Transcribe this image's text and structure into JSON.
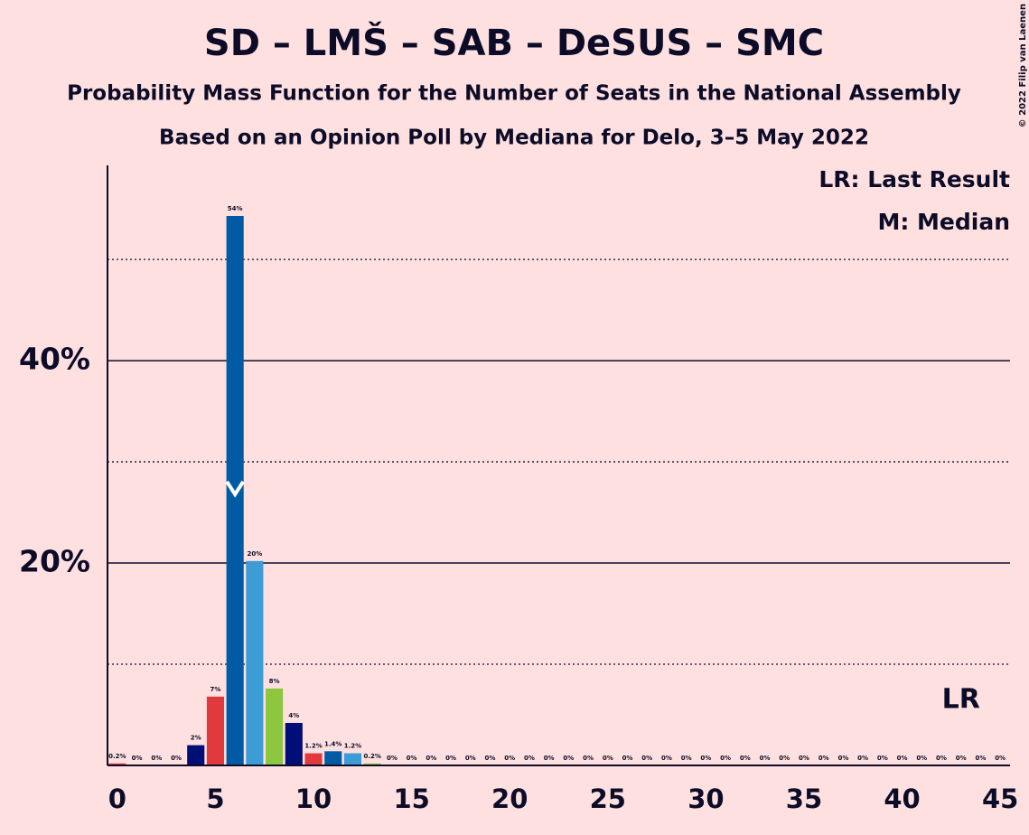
{
  "chart_data": {
    "type": "bar",
    "title": "SD – LMŠ – SAB – DeSUS – SMC",
    "subtitle": "Probability Mass Function for the Number of Seats in the National Assembly",
    "subtitle2": "Based on an Opinion Poll by Mediana for Delo, 3–5 May 2022",
    "legend_lr": "LR: Last Result",
    "legend_m": "M: Median",
    "lr_label": "LR",
    "copyright": "© 2022 Filip van Laenen",
    "categories": [
      0,
      1,
      2,
      3,
      4,
      5,
      6,
      7,
      8,
      9,
      10,
      11,
      12,
      13,
      14,
      15,
      16,
      17,
      18,
      19,
      20,
      21,
      22,
      23,
      24,
      25,
      26,
      27,
      28,
      29,
      30,
      31,
      32,
      33,
      34,
      35,
      36,
      37,
      38,
      39,
      40,
      41,
      42,
      43,
      44,
      45
    ],
    "values": [
      0.2,
      0,
      0,
      0,
      2,
      6.8,
      54.3,
      20.2,
      7.6,
      4.2,
      1.2,
      1.4,
      1.2,
      0.2,
      0,
      0,
      0,
      0,
      0,
      0,
      0,
      0,
      0,
      0,
      0,
      0,
      0,
      0,
      0,
      0,
      0,
      0,
      0,
      0,
      0,
      0,
      0,
      0,
      0,
      0,
      0,
      0,
      0,
      0,
      0,
      0
    ],
    "value_labels": [
      "0.2%",
      "0%",
      "0%",
      "0%",
      "2%",
      "7%",
      "54%",
      "20%",
      "8%",
      "4%",
      "1.2%",
      "1.4%",
      "1.2%",
      "0.2%",
      "0%",
      "0%",
      "0%",
      "0%",
      "0%",
      "0%",
      "0%",
      "0%",
      "0%",
      "0%",
      "0%",
      "0%",
      "0%",
      "0%",
      "0%",
      "0%",
      "0%",
      "0%",
      "0%",
      "0%",
      "0%",
      "0%",
      "0%",
      "0%",
      "0%",
      "0%",
      "0%",
      "0%",
      "0%",
      "0%",
      "0%",
      "0%"
    ],
    "palette": [
      "#e03a3e",
      "#005ba4",
      "#3c9dd6",
      "#8dc63f",
      "#000f78"
    ],
    "median": 6,
    "last_result": 43,
    "xlim": [
      -0.5,
      45.5
    ],
    "xticks": [
      0,
      5,
      10,
      15,
      20,
      25,
      30,
      35,
      40,
      45
    ],
    "ylim": [
      0,
      59.3
    ],
    "yticks": [
      {
        "value": 20,
        "label": "20%"
      },
      {
        "value": 40,
        "label": "40%"
      }
    ],
    "minor_yticks": [
      10,
      30,
      50
    ]
  }
}
